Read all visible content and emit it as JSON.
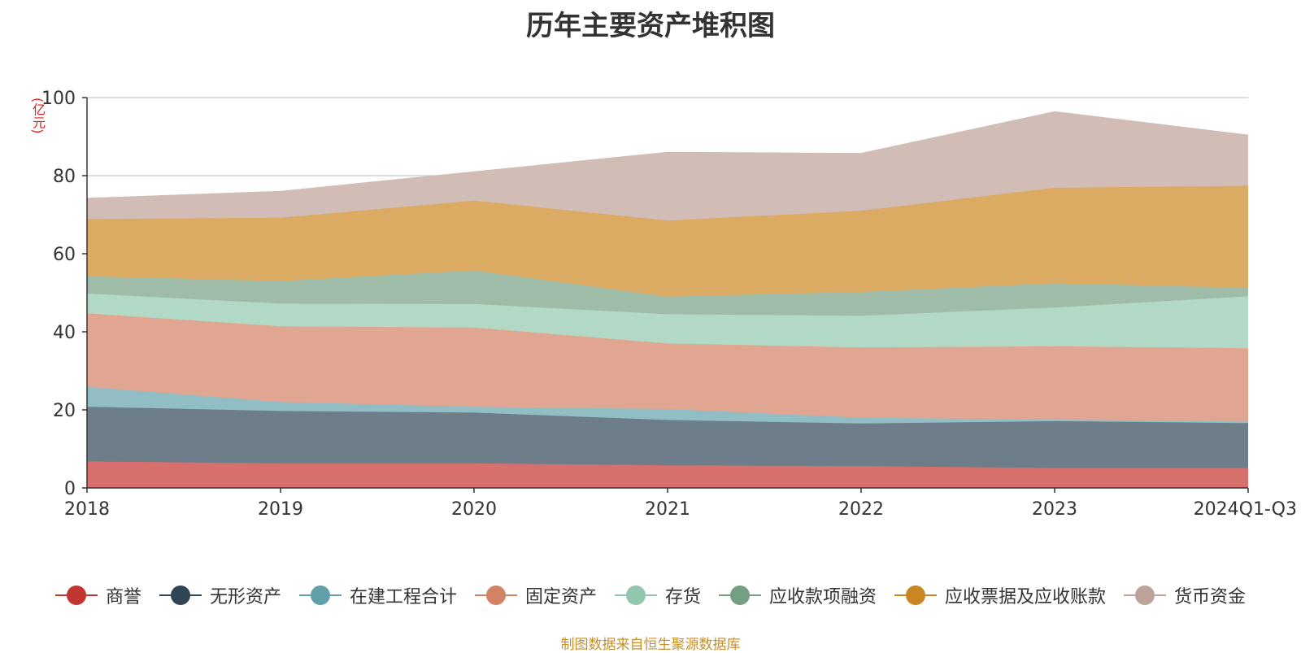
{
  "title": "历年主要资产堆积图",
  "unit_label": "(亿元)",
  "source": "制图数据来自恒生聚源数据库",
  "chart_data": {
    "type": "area",
    "stacked": true,
    "title": "历年主要资产堆积图",
    "ylabel": "(亿元)",
    "ylim": [
      0,
      100
    ],
    "yticks": [
      0,
      20,
      40,
      60,
      80,
      100
    ],
    "grid": true,
    "legend_position": "bottom",
    "categories": [
      "2018",
      "2019",
      "2020",
      "2021",
      "2022",
      "2023",
      "2024Q1-Q3"
    ],
    "series": [
      {
        "name": "商誉",
        "color": "#c23531",
        "area_color": "#d7706d",
        "values": [
          6.8,
          6.3,
          6.3,
          5.8,
          5.6,
          5.1,
          5.1
        ]
      },
      {
        "name": "无形资产",
        "color": "#2f4554",
        "area_color": "#6e7d8a",
        "values": [
          14.0,
          13.4,
          13.0,
          11.6,
          10.9,
          12.0,
          11.5
        ]
      },
      {
        "name": "在建工程合计",
        "color": "#61a0a8",
        "area_color": "#91bdc4",
        "values": [
          5.1,
          2.3,
          1.5,
          2.8,
          1.5,
          0.4,
          0.4
        ]
      },
      {
        "name": "固定资产",
        "color": "#d48265",
        "area_color": "#e1a691",
        "values": [
          18.8,
          19.4,
          20.3,
          16.8,
          18.0,
          18.8,
          18.8
        ]
      },
      {
        "name": "存货",
        "color": "#91c7ae",
        "area_color": "#b2d9c5",
        "values": [
          5.1,
          5.8,
          6.0,
          7.5,
          8.1,
          9.9,
          13.3
        ]
      },
      {
        "name": "应收款项融资",
        "color": "#749f83",
        "area_color": "#9fbca8",
        "values": [
          4.4,
          5.8,
          8.6,
          4.5,
          6.1,
          6.2,
          2.2
        ]
      },
      {
        "name": "应收票据及应收账款",
        "color": "#ca8622",
        "area_color": "#dbaa63",
        "values": [
          14.7,
          16.2,
          17.9,
          19.5,
          20.8,
          24.5,
          26.1
        ]
      },
      {
        "name": "货币资金",
        "color": "#bda29a",
        "area_color": "#d1bcb6",
        "values": [
          5.3,
          6.8,
          7.4,
          17.5,
          14.7,
          19.5,
          13.0
        ]
      }
    ]
  }
}
